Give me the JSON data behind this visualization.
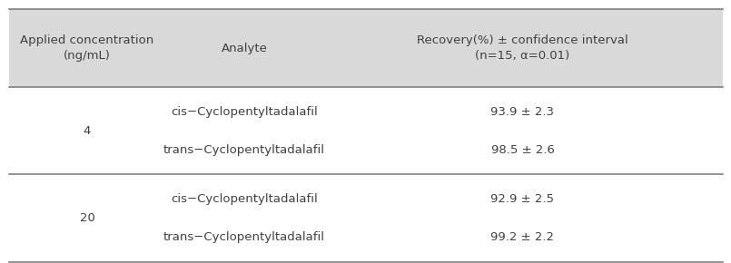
{
  "header": [
    "Applied concentration\n(ng/mL)",
    "Analyte",
    "Recovery(%) ± confidence interval\n(n=15, α=0.01)"
  ],
  "rows": [
    {
      "conc": "4",
      "analyte1": "cis−Cyclopentyltadalafil",
      "recovery1": "93.9 ± 2.3",
      "analyte2": "trans−Cyclopentyltadalafil",
      "recovery2": "98.5 ± 2.6"
    },
    {
      "conc": "20",
      "analyte1": "cis−Cyclopentyltadalafil",
      "recovery1": "92.9 ± 2.5",
      "analyte2": "trans−Cyclopentyltadalafil",
      "recovery2": "99.2 ± 2.2"
    }
  ],
  "header_bg": "#d9d9d9",
  "body_bg": "#ffffff",
  "text_color": "#404040",
  "font_size": 9.5,
  "header_font_size": 9.5
}
